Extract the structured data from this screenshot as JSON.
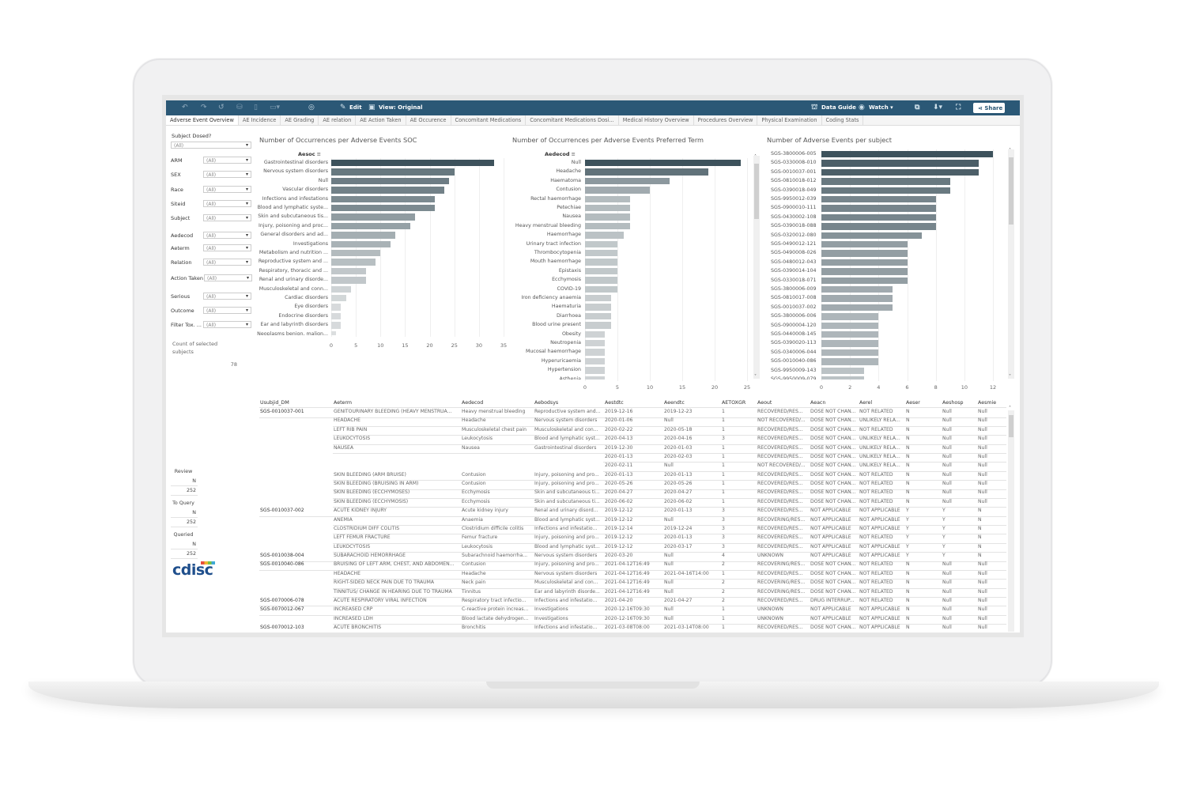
{
  "toolbar": {
    "edit": "Edit",
    "view": "View: Original",
    "data_guide": "Data Guide",
    "watch": "Watch",
    "share": "Share"
  },
  "tabs": [
    "Adverse Event Overview",
    "AE Incidence",
    "AE Grading",
    "AE relation",
    "AE Action Taken",
    "AE Occurence",
    "Concomitant Medications",
    "Concomitant Medications Dosi...",
    "Medical History Overview",
    "Procedures Overview",
    "Physical Examination",
    "Coding Stats"
  ],
  "active_tab": "Adverse Event Overview",
  "filters": {
    "subject_dosed": {
      "label": "Subject Dosed?",
      "value": "(All)"
    },
    "items": [
      {
        "label": "ARM",
        "value": "(All)"
      },
      {
        "label": "SEX",
        "value": "(All)"
      },
      {
        "label": "Race",
        "value": "(All)"
      },
      {
        "label": "Siteid",
        "value": "(All)"
      },
      {
        "label": "Subject",
        "value": "(All)"
      },
      {
        "label": "Aedecod",
        "value": "(All)"
      },
      {
        "label": "Aeterm",
        "value": "(All)"
      },
      {
        "label": "Relation",
        "value": "(All)"
      },
      {
        "label": "Action Taken",
        "value": "(All)"
      },
      {
        "label": "Serious",
        "value": "(All)"
      },
      {
        "label": "Outcome",
        "value": "(All)"
      },
      {
        "label": "Filter Tox. ...",
        "value": "(All)"
      }
    ]
  },
  "count": {
    "label": "Count of selected subjects",
    "value": "78"
  },
  "status": [
    {
      "label": "Review",
      "sub": "N",
      "value": "252"
    },
    {
      "label": "To Query",
      "sub": "N",
      "value": "252"
    },
    {
      "label": "Queried",
      "sub": "N",
      "value": "252"
    }
  ],
  "logo": "cdisc",
  "colors": {
    "toolbar": "#2b5876",
    "bar_dark": "#3d525c",
    "bar_light": "#dde1e2"
  },
  "chart_data": [
    {
      "type": "bar",
      "orientation": "horizontal",
      "title": "Number of Occurrences per Adverse Events SOC",
      "ylabel": "Aesoc",
      "xlim": [
        0,
        35
      ],
      "xticks": [
        0,
        5,
        10,
        15,
        20,
        25,
        30,
        35
      ],
      "grid": true,
      "categories": [
        "Gastrointestinal disorders",
        "Nervous system disorders",
        "Null",
        "Vascular disorders",
        "Infections and infestations",
        "Blood and lymphatic syste...",
        "Skin and subcutaneous tis...",
        "Injury, poisoning and proc...",
        "General disorders and ad...",
        "Investigations",
        "Metabolism and nutrition ...",
        "Reproductive system and ...",
        "Respiratory, thoracic and ...",
        "Renal and urinary disorde...",
        "Musculoskeletal and conn...",
        "Cardiac disorders",
        "Eye disorders",
        "Endocrine disorders",
        "Ear and labyrinth disorders",
        "Neoplasms benign, malign..."
      ],
      "values": [
        33,
        25,
        24,
        23,
        21,
        21,
        17,
        16,
        13,
        12,
        10,
        9,
        7,
        7,
        4,
        3,
        2,
        2,
        2,
        1
      ]
    },
    {
      "type": "bar",
      "orientation": "horizontal",
      "title": "Number of Occurrences per Adverse Events Preferred Term",
      "ylabel": "Aedecod",
      "xlim": [
        0,
        25
      ],
      "xticks": [
        0,
        5,
        10,
        15,
        20,
        25
      ],
      "grid": true,
      "categories": [
        "Null",
        "Headache",
        "Haematoma",
        "Contusion",
        "Rectal haemorrhage",
        "Petechiae",
        "Nausea",
        "Heavy menstrual bleeding",
        "Haemorrhage",
        "Urinary tract infection",
        "Thrombocytopenia",
        "Mouth haemorrhage",
        "Epistaxis",
        "Ecchymosis",
        "COVID-19",
        "Iron deficiency anaemia",
        "Haematuria",
        "Diarrhoea",
        "Blood urine present",
        "Obesity",
        "Neutropenia",
        "Mucosal haemorrhage",
        "Hyperuricaemia",
        "Hypertension",
        "Asthenia"
      ],
      "values": [
        24,
        19,
        13,
        10,
        7,
        7,
        7,
        7,
        6,
        5,
        5,
        5,
        5,
        5,
        5,
        4,
        4,
        4,
        4,
        3,
        3,
        3,
        3,
        3,
        3
      ]
    },
    {
      "type": "bar",
      "orientation": "horizontal",
      "title": "Number of Adverse Events per subject",
      "xlim": [
        0,
        12
      ],
      "xticks": [
        0,
        2,
        4,
        6,
        8,
        10,
        12
      ],
      "grid": true,
      "categories": [
        "SGS-3800006-005",
        "SGS-0330008-010",
        "SGS-0010037-001",
        "SGS-0810018-012",
        "SGS-0390018-049",
        "SGS-9950012-039",
        "SGS-0900010-111",
        "SGS-0430002-108",
        "SGS-0390018-088",
        "SGS-0320012-080",
        "SGS-0490012-121",
        "SGS-0490008-026",
        "SGS-0480012-043",
        "SGS-0390014-104",
        "SGS-0330018-071",
        "SGS-3800006-009",
        "SGS-0810017-008",
        "SGS-0010037-002",
        "SGS-3800006-006",
        "SGS-0900004-120",
        "SGS-0440008-145",
        "SGS-0390020-113",
        "SGS-0340006-044",
        "SGS-0010040-086",
        "SGS-9950009-143",
        "SGS-9950009-079"
      ],
      "values": [
        12,
        11,
        11,
        9,
        9,
        8,
        8,
        8,
        8,
        7,
        6,
        6,
        6,
        6,
        6,
        5,
        5,
        5,
        4,
        4,
        4,
        4,
        4,
        4,
        3,
        3
      ]
    }
  ],
  "table": {
    "columns": [
      "Usubjid_DM",
      "Aeterm",
      "Aedecod",
      "Aebodsys",
      "Aestdtc",
      "Aeendtc",
      "AETOXGR",
      "Aeout",
      "Aeacn",
      "Aerel",
      "Aeser",
      "Aeshosp",
      "Aesmie"
    ],
    "rows": [
      [
        "SGS-0010037-001",
        "GENITOURINARY BLEEDING (HEAVY MENSTRUA...",
        "Heavy menstrual bleeding",
        "Reproductive system and...",
        "2019-12-16",
        "2019-12-23",
        "1",
        "RECOVERED/RES...",
        "DOSE NOT CHAN...",
        "NOT RELATED",
        "N",
        "Null",
        "Null"
      ],
      [
        "",
        "HEADACHE",
        "Headache",
        "Nervous system disorders",
        "2020-01-06",
        "Null",
        "1",
        "NOT RECOVERED/...",
        "DOSE NOT CHAN...",
        "UNLIKELY RELA...",
        "N",
        "Null",
        "Null"
      ],
      [
        "",
        "LEFT RIB PAIN",
        "Musculoskeletal chest pain",
        "Musculoskeletal and con...",
        "2020-02-22",
        "2020-05-18",
        "1",
        "RECOVERED/RES...",
        "DOSE NOT CHAN...",
        "NOT RELATED",
        "N",
        "Null",
        "Null"
      ],
      [
        "",
        "LEUKOCYTOSIS",
        "Leukocytosis",
        "Blood and lymphatic syst...",
        "2020-04-13",
        "2020-04-16",
        "3",
        "RECOVERED/RES...",
        "DOSE NOT CHAN...",
        "UNLIKELY RELA...",
        "N",
        "Null",
        "Null"
      ],
      [
        "",
        "NAUSEA",
        "Nausea",
        "Gastrointestinal disorders",
        "2019-12-30",
        "2020-01-03",
        "1",
        "RECOVERED/RES...",
        "DOSE NOT CHAN...",
        "UNLIKELY RELA...",
        "N",
        "Null",
        "Null"
      ],
      [
        "",
        "",
        "",
        "",
        "2020-01-13",
        "2020-02-03",
        "1",
        "RECOVERED/RES...",
        "DOSE NOT CHAN...",
        "UNLIKELY RELA...",
        "N",
        "Null",
        "Null"
      ],
      [
        "",
        "",
        "",
        "",
        "2020-02-11",
        "Null",
        "1",
        "NOT RECOVERED/...",
        "DOSE NOT CHAN...",
        "UNLIKELY RELA...",
        "N",
        "Null",
        "Null"
      ],
      [
        "",
        "SKIN BLEEDING (ARM BRUISE)",
        "Contusion",
        "Injury, poisoning and pro...",
        "2020-01-13",
        "2020-01-13",
        "1",
        "RECOVERED/RES...",
        "DOSE NOT CHAN...",
        "NOT RELATED",
        "N",
        "Null",
        "Null"
      ],
      [
        "",
        "SKIN BLEEDING (BRUISING IN ARM)",
        "Contusion",
        "Injury, poisoning and pro...",
        "2020-05-26",
        "2020-05-26",
        "1",
        "RECOVERED/RES...",
        "DOSE NOT CHAN...",
        "NOT RELATED",
        "N",
        "Null",
        "Null"
      ],
      [
        "",
        "SKIN BLEEDING (ECCHYMOSES)",
        "Ecchymosis",
        "Skin and subcutaneous ti...",
        "2020-04-27",
        "2020-04-27",
        "1",
        "RECOVERED/RES...",
        "DOSE NOT CHAN...",
        "NOT RELATED",
        "N",
        "Null",
        "Null"
      ],
      [
        "",
        "SKIN BLEEDING (ECCHYMOSIS)",
        "Ecchymosis",
        "Skin and subcutaneous ti...",
        "2020-06-02",
        "2020-06-02",
        "1",
        "RECOVERED/RES...",
        "DOSE NOT CHAN...",
        "NOT RELATED",
        "N",
        "Null",
        "Null"
      ],
      [
        "SGS-0010037-002",
        "ACUTE KIDNEY INJURY",
        "Acute kidney injury",
        "Renal and urinary disord...",
        "2019-12-12",
        "2020-01-13",
        "3",
        "RECOVERED/RES...",
        "NOT APPLICABLE",
        "NOT APPLICABLE",
        "Y",
        "Y",
        "N"
      ],
      [
        "",
        "ANEMIA",
        "Anaemia",
        "Blood and lymphatic syst...",
        "2019-12-12",
        "Null",
        "3",
        "RECOVERING/RES...",
        "NOT APPLICABLE",
        "NOT APPLICABLE",
        "Y",
        "Y",
        "N"
      ],
      [
        "",
        "CLOSTRIDIUM DIFF COLITIS",
        "Clostridium difficile colitis",
        "Infections and infestatio...",
        "2019-12-14",
        "2019-12-24",
        "3",
        "RECOVERED/RES...",
        "NOT APPLICABLE",
        "NOT APPLICABLE",
        "Y",
        "Y",
        "N"
      ],
      [
        "",
        "LEFT FEMUR FRACTURE",
        "Femur fracture",
        "Injury, poisoning and pro...",
        "2019-12-12",
        "2020-01-13",
        "3",
        "RECOVERED/RES...",
        "NOT APPLICABLE",
        "NOT RELATED",
        "Y",
        "Y",
        "N"
      ],
      [
        "",
        "LEUKOCYTOSIS",
        "Leukocytosis",
        "Blood and lymphatic syst...",
        "2019-12-12",
        "2020-03-17",
        "3",
        "RECOVERED/RES...",
        "NOT APPLICABLE",
        "NOT APPLICABLE",
        "Y",
        "Y",
        "N"
      ],
      [
        "SGS-0010038-004",
        "SUBARACHOID HEMORRHAGE",
        "Subarachnoid haemorrha...",
        "Nervous system disorders",
        "2020-03-20",
        "Null",
        "4",
        "UNKNOWN",
        "NOT APPLICABLE",
        "NOT APPLICABLE",
        "Y",
        "Y",
        "N"
      ],
      [
        "SGS-0010040-086",
        "BRUISING OF LEFT ARM, CHEST, AND ABDOMEN...",
        "Contusion",
        "Injury, poisoning and pro...",
        "2021-04-12T16:49",
        "Null",
        "2",
        "RECOVERING/RES...",
        "DOSE NOT CHAN...",
        "NOT RELATED",
        "N",
        "Null",
        "Null"
      ],
      [
        "",
        "HEADACHE",
        "Headache",
        "Nervous system disorders",
        "2021-04-12T16:49",
        "2021-04-16T14:00",
        "1",
        "RECOVERED/RES...",
        "DOSE NOT CHAN...",
        "NOT RELATED",
        "N",
        "Null",
        "Null"
      ],
      [
        "",
        "RIGHT-SIDED NECK PAIN DUE TO TRAUMA",
        "Neck pain",
        "Musculoskeletal and con...",
        "2021-04-12T16:49",
        "Null",
        "2",
        "RECOVERING/RES...",
        "DOSE NOT CHAN...",
        "NOT RELATED",
        "N",
        "Null",
        "Null"
      ],
      [
        "",
        "TINNITUS/ CHANGE IN HEARING DUE TO TRAUMA",
        "Tinnitus",
        "Ear and labyrinth disorde...",
        "2021-04-12T16:49",
        "Null",
        "2",
        "RECOVERING/RES...",
        "DOSE NOT CHAN...",
        "NOT RELATED",
        "N",
        "Null",
        "Null"
      ],
      [
        "SGS-0070006-078",
        "ACUTE RESPIRATORY VIRAL INFECTION",
        "Respiratory tract infectio...",
        "Infections and infestatio...",
        "2021-04-20",
        "2021-04-27",
        "2",
        "RECOVERED/RES...",
        "DRUG INTERRUP...",
        "NOT RELATED",
        "N",
        "Null",
        "Null"
      ],
      [
        "SGS-0070012-067",
        "INCREASED CRP",
        "C-reactive protein increas...",
        "Investigations",
        "2020-12-16T09:30",
        "Null",
        "1",
        "UNKNOWN",
        "NOT APPLICABLE",
        "NOT APPLICABLE",
        "N",
        "Null",
        "Null"
      ],
      [
        "",
        "INCREASED LDH",
        "Blood lactate dehydrogen...",
        "Investigations",
        "2020-12-16T09:30",
        "Null",
        "1",
        "UNKNOWN",
        "NOT APPLICABLE",
        "NOT APPLICABLE",
        "N",
        "Null",
        "Null"
      ],
      [
        "SGS-0070012-103",
        "ACUTE BRONCHITIS",
        "Bronchitis",
        "Infections and infestatio...",
        "2021-03-08T08:00",
        "2021-03-14T08:00",
        "1",
        "RECOVERED/RES...",
        "DOSE NOT CHAN...",
        "NOT APPLICABLE",
        "N",
        "Null",
        "Null"
      ]
    ]
  }
}
